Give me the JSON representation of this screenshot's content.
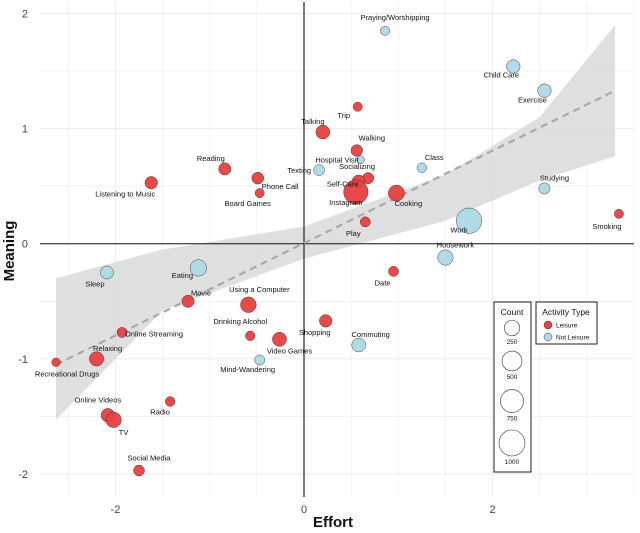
{
  "chart_data": {
    "type": "scatter",
    "title": "",
    "xlabel": "Effort",
    "ylabel": "Meaning",
    "xlim": [
      -2.8,
      3.5
    ],
    "ylim": [
      -2.2,
      2.1
    ],
    "x_ticks": [
      -2,
      0,
      2
    ],
    "y_ticks": [
      -2,
      -1,
      0,
      1,
      2
    ],
    "x_tick_labels": [
      "-2",
      "0",
      "2"
    ],
    "y_tick_labels": [
      "-2",
      "-1",
      "0",
      "1",
      "2"
    ],
    "grid": true,
    "legend_position": "bottom-right",
    "series": [
      {
        "name": "Leisure",
        "color": "#e8403f",
        "points": [
          {
            "label": "Trip",
            "x": 0.57,
            "y": 1.19,
            "count": 40
          },
          {
            "label": "Talking",
            "x": 0.2,
            "y": 0.97,
            "count": 180
          },
          {
            "label": "Walking",
            "x": 0.56,
            "y": 0.81,
            "count": 100
          },
          {
            "label": "Reading",
            "x": -0.84,
            "y": 0.65,
            "count": 120
          },
          {
            "label": "Phone Call",
            "x": -0.49,
            "y": 0.57,
            "count": 110
          },
          {
            "label": "Listening to Music",
            "x": -1.62,
            "y": 0.53,
            "count": 130
          },
          {
            "label": "Socializing",
            "x": 0.68,
            "y": 0.57,
            "count": 90
          },
          {
            "label": "Self-Care",
            "x": 0.58,
            "y": 0.54,
            "count": 150
          },
          {
            "label": "Instagram",
            "x": 0.55,
            "y": 0.45,
            "count": 850
          },
          {
            "label": "Cooking",
            "x": 0.98,
            "y": 0.44,
            "count": 280
          },
          {
            "label": "Board Games",
            "x": -0.47,
            "y": 0.44,
            "count": 40
          },
          {
            "label": "Smoking",
            "x": 3.34,
            "y": 0.26,
            "count": 40
          },
          {
            "label": "Play",
            "x": 0.65,
            "y": 0.19,
            "count": 60
          },
          {
            "label": "Date",
            "x": 0.95,
            "y": -0.24,
            "count": 60
          },
          {
            "label": "Movie",
            "x": -1.23,
            "y": -0.5,
            "count": 120
          },
          {
            "label": "Using a Computer",
            "x": -0.59,
            "y": -0.53,
            "count": 260
          },
          {
            "label": "Shopping",
            "x": 0.23,
            "y": -0.67,
            "count": 130
          },
          {
            "label": "Online Streaming",
            "x": -1.93,
            "y": -0.77,
            "count": 60
          },
          {
            "label": "Drinking Alcohol",
            "x": -0.57,
            "y": -0.8,
            "count": 50
          },
          {
            "label": "Video Games",
            "x": -0.26,
            "y": -0.83,
            "count": 190
          },
          {
            "label": "Relaxing",
            "x": -2.2,
            "y": -1.0,
            "count": 200
          },
          {
            "label": "Recreational Drugs",
            "x": -2.63,
            "y": -1.03,
            "count": 30
          },
          {
            "label": "Radio",
            "x": -1.42,
            "y": -1.37,
            "count": 50
          },
          {
            "label": "Online Videos",
            "x": -2.08,
            "y": -1.49,
            "count": 170
          },
          {
            "label": "TV",
            "x": -2.02,
            "y": -1.53,
            "count": 250
          },
          {
            "label": "Social Media",
            "x": -1.75,
            "y": -1.97,
            "count": 80
          }
        ]
      },
      {
        "name": "Not Leisure",
        "color": "#add8e6",
        "points": [
          {
            "label": "Praying/Worshipping",
            "x": 0.86,
            "y": 1.85,
            "count": 40
          },
          {
            "label": "Child Care",
            "x": 2.22,
            "y": 1.54,
            "count": 170
          },
          {
            "label": "Exercise",
            "x": 2.55,
            "y": 1.33,
            "count": 170
          },
          {
            "label": "Hospital Visit",
            "x": 0.6,
            "y": 0.73,
            "count": 20
          },
          {
            "label": "Texting",
            "x": 0.16,
            "y": 0.64,
            "count": 80
          },
          {
            "label": "Class",
            "x": 1.25,
            "y": 0.66,
            "count": 50
          },
          {
            "label": "Studying",
            "x": 2.55,
            "y": 0.48,
            "count": 90
          },
          {
            "label": "Work",
            "x": 1.75,
            "y": 0.2,
            "count": 950
          },
          {
            "label": "Housework",
            "x": 1.5,
            "y": -0.12,
            "count": 250
          },
          {
            "label": "Eating",
            "x": -1.12,
            "y": -0.21,
            "count": 300
          },
          {
            "label": "Sleep",
            "x": -2.09,
            "y": -0.25,
            "count": 150
          },
          {
            "label": "Commuting",
            "x": 0.58,
            "y": -0.88,
            "count": 180
          },
          {
            "label": "Mind-Wandering",
            "x": -0.47,
            "y": -1.01,
            "count": 60
          }
        ]
      }
    ],
    "trend": {
      "style": "dashed",
      "color": "#a9a9a9",
      "band_color": "#d9d9d9",
      "line": [
        [
          -2.63,
          -1.05
        ],
        [
          3.3,
          1.33
        ]
      ],
      "band_upper": [
        [
          -2.63,
          -0.3
        ],
        [
          -1.5,
          -0.05
        ],
        [
          0,
          0.15
        ],
        [
          1.5,
          0.6
        ],
        [
          2.5,
          1.1
        ],
        [
          3.3,
          1.9
        ]
      ],
      "band_lower": [
        [
          3.3,
          0.76
        ],
        [
          2.5,
          0.55
        ],
        [
          1.5,
          0.2
        ],
        [
          0,
          -0.13
        ],
        [
          -1.5,
          -0.58
        ],
        [
          -2.63,
          -1.53
        ]
      ]
    },
    "legends": {
      "size": {
        "title": "Count",
        "entries": [
          {
            "value": 250,
            "label": "250"
          },
          {
            "value": 500,
            "label": "500"
          },
          {
            "value": 750,
            "label": "750"
          },
          {
            "value": 1000,
            "label": "1000"
          }
        ]
      },
      "color": {
        "title": "Activity Type",
        "entries": [
          {
            "label": "Leisure",
            "color": "#e8403f"
          },
          {
            "label": "Not Leisure",
            "color": "#add8e6"
          }
        ]
      }
    }
  }
}
